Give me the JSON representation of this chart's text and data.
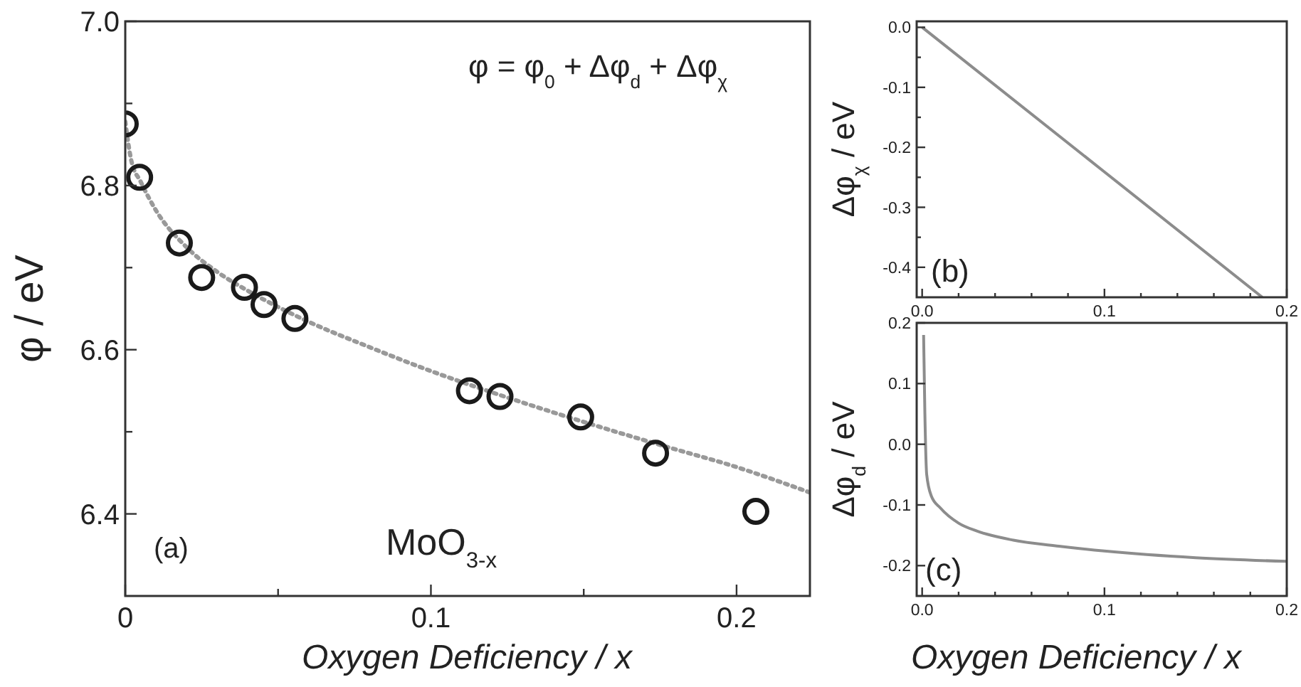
{
  "chart_data": [
    {
      "type": "scatter",
      "xlabel": "Oxygen Deficiency / x",
      "ylabel": "φ / eV",
      "annotations": [
        "φ = φ$_{0}$ + Δφ$_{d}$ + Δφ$_{χ}$",
        "(a)",
        "MoO$_{3-x}$"
      ],
      "xlim": [
        0,
        0.224
      ],
      "ylim": [
        6.3,
        7.0
      ],
      "xticks": [
        0,
        {
          "value": 0.05,
          "label": null
        },
        0.1,
        {
          "value": 0.15,
          "label": null
        },
        0.2
      ],
      "yticks": [
        6.4,
        {
          "value": 6.5,
          "label": null
        },
        6.6,
        {
          "value": 6.7,
          "label": null
        },
        6.8,
        {
          "value": 6.9,
          "label": null
        },
        {
          "value": 7.0,
          "label": "7.0"
        }
      ],
      "series": [
        {
          "type": "scatter",
          "color": "#1a1a1a",
          "marker": "circle",
          "x": [
            0,
            0.0047,
            0.0177,
            0.025,
            0.039,
            0.0454,
            0.0555,
            0.1126,
            0.1226,
            0.149,
            0.1735,
            0.2063
          ],
          "values": [
            6.875,
            6.81,
            6.73,
            6.688,
            6.676,
            6.655,
            6.638,
            6.55,
            6.543,
            6.518,
            6.474,
            6.403
          ]
        },
        {
          "type": "line",
          "color": "#999999",
          "line_style": "dotted",
          "x": [
            0,
            0.002,
            0.005,
            0.01,
            0.02,
            0.03,
            0.04,
            0.05,
            0.06,
            0.08,
            0.1,
            0.12,
            0.15,
            0.175,
            0.2,
            0.224
          ],
          "values": [
            6.878,
            6.83,
            6.805,
            6.77,
            6.725,
            6.695,
            6.672,
            6.652,
            6.634,
            6.603,
            6.574,
            6.548,
            6.512,
            6.484,
            6.457,
            6.426
          ]
        }
      ]
    },
    {
      "type": "line",
      "ylabel": "Δφ$_{χ}$ / eV",
      "annotations": [
        "(b)"
      ],
      "xlim": [
        -0.003,
        0.2
      ],
      "ylim": [
        -0.45,
        0.01
      ],
      "xticks": [
        {
          "value": 0,
          "label": "0.0"
        },
        {
          "value": 0.02,
          "label": null
        },
        {
          "value": 0.04,
          "label": null
        },
        {
          "value": 0.06,
          "label": null
        },
        {
          "value": 0.08,
          "label": null
        },
        0.1,
        {
          "value": 0.12,
          "label": null
        },
        {
          "value": 0.14,
          "label": null
        },
        {
          "value": 0.16,
          "label": null
        },
        {
          "value": 0.18,
          "label": null
        },
        0.2
      ],
      "yticks": [
        -0.4,
        {
          "value": -0.35,
          "label": null
        },
        -0.3,
        {
          "value": -0.25,
          "label": null
        },
        -0.2,
        {
          "value": -0.15,
          "label": null
        },
        -0.1,
        {
          "value": -0.05,
          "label": null
        },
        {
          "value": 0,
          "label": "0.0"
        }
      ],
      "series": [
        {
          "color": "#8c8c8c",
          "x": [
            0,
            0.1,
            0.1866
          ],
          "values": [
            0,
            -0.241,
            -0.45
          ]
        }
      ]
    },
    {
      "type": "line",
      "xlabel": "Oxygen Deficiency / x",
      "ylabel": "Δφ$_{d}$ / eV",
      "annotations": [
        "(c)"
      ],
      "xlim": [
        -0.003,
        0.2
      ],
      "ylim": [
        -0.25,
        0.2
      ],
      "xticks": [
        {
          "value": 0,
          "label": "0.0"
        },
        {
          "value": 0.02,
          "label": null
        },
        {
          "value": 0.04,
          "label": null
        },
        {
          "value": 0.06,
          "label": null
        },
        {
          "value": 0.08,
          "label": null
        },
        0.1,
        {
          "value": 0.12,
          "label": null
        },
        {
          "value": 0.14,
          "label": null
        },
        {
          "value": 0.16,
          "label": null
        },
        {
          "value": 0.18,
          "label": null
        },
        0.2
      ],
      "yticks": [
        -0.2,
        -0.1,
        {
          "value": 0,
          "label": "0.0"
        },
        0.1,
        0.2
      ],
      "series": [
        {
          "color": "#8c8c8c",
          "x": [
            0.0008,
            0.0015,
            0.0025,
            0.005,
            0.01,
            0.02,
            0.03,
            0.05,
            0.075,
            0.1,
            0.15,
            0.2
          ],
          "values": [
            0.18,
            0.05,
            -0.05,
            -0.085,
            -0.105,
            -0.13,
            -0.143,
            -0.158,
            -0.168,
            -0.176,
            -0.187,
            -0.193
          ]
        }
      ]
    }
  ]
}
